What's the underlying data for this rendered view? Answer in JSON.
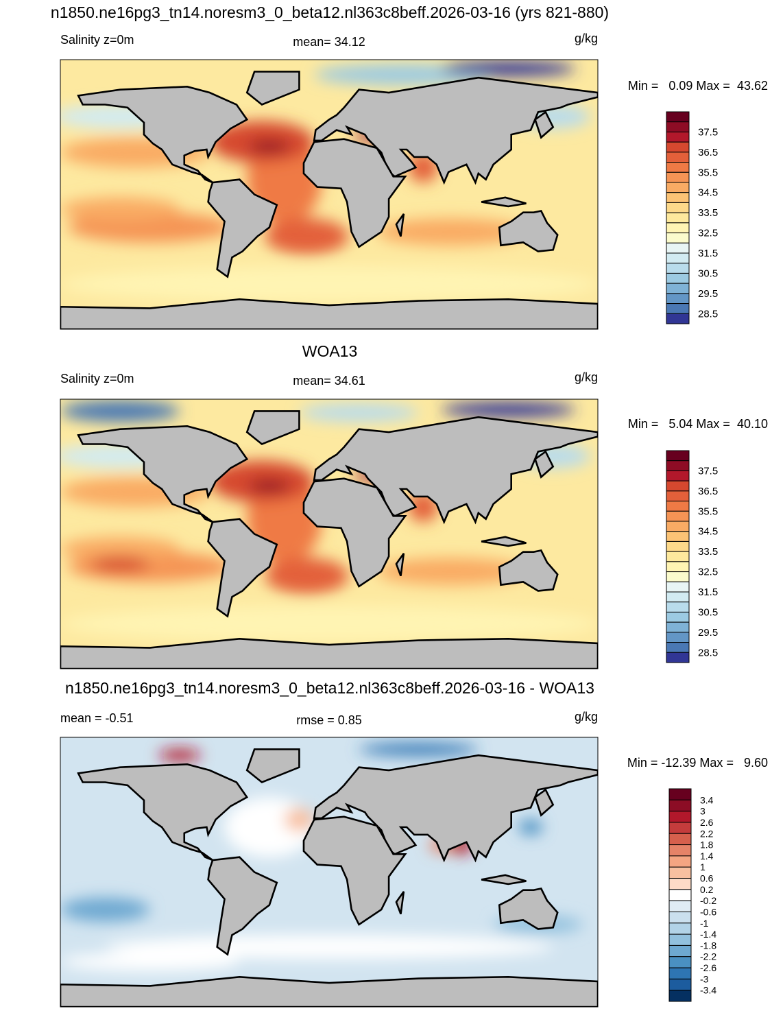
{
  "panels": [
    {
      "title": "n1850.ne16pg3_tn14.noresm3_0_beta12.nl363c8beff.2026-03-16 (yrs 821-880)",
      "left": "Salinity z=0m",
      "center": "mean=  34.12",
      "right": "g/kg",
      "minmax": "Min =   0.09 Max =  43.62",
      "colorbar": {
        "lim": [
          28,
          38.5
        ],
        "labels": [
          37.5,
          36.5,
          35.5,
          34.5,
          33.5,
          32.5,
          31.5,
          30.5,
          29.5,
          28.5
        ],
        "colors": [
          "#67001f",
          "#8e0c25",
          "#b2182b",
          "#d6482f",
          "#e3603a",
          "#ef7a45",
          "#f59455",
          "#f9ab64",
          "#fcc375",
          "#fdd98a",
          "#fee99d",
          "#fff4b3",
          "#fbfbcc",
          "#e8f5f5",
          "#d2ebf2",
          "#b9dcec",
          "#9ccae2",
          "#7fb2d6",
          "#6396c6",
          "#4a78b4",
          "#313695"
        ]
      }
    },
    {
      "title": "WOA13",
      "left": "Salinity z=0m",
      "center": "mean=  34.61",
      "right": "g/kg",
      "minmax": "Min =   5.04 Max =  40.10",
      "colorbar": {
        "lim": [
          28,
          38.5
        ],
        "labels": [
          37.5,
          36.5,
          35.5,
          34.5,
          33.5,
          32.5,
          31.5,
          30.5,
          29.5,
          28.5
        ],
        "colors": [
          "#67001f",
          "#8e0c25",
          "#b2182b",
          "#d6482f",
          "#e3603a",
          "#ef7a45",
          "#f59455",
          "#f9ab64",
          "#fcc375",
          "#fdd98a",
          "#fee99d",
          "#fff4b3",
          "#fbfbcc",
          "#e8f5f5",
          "#d2ebf2",
          "#b9dcec",
          "#9ccae2",
          "#7fb2d6",
          "#6396c6",
          "#4a78b4",
          "#313695"
        ]
      }
    },
    {
      "title": "n1850.ne16pg3_tn14.noresm3_0_beta12.nl363c8beff.2026-03-16 - WOA13",
      "left": "mean =  -0.51",
      "center": "rmse =   0.85",
      "right": "g/kg",
      "minmax": "Min = -12.39 Max =   9.60",
      "colorbar": {
        "lim": [
          -3.8,
          3.8
        ],
        "labels": [
          3.4,
          3,
          2.6,
          2.2,
          1.8,
          1.4,
          1,
          0.6,
          0.2,
          -0.2,
          -0.6,
          -1,
          -1.4,
          -1.8,
          -2.2,
          -2.6,
          -3,
          -3.4
        ],
        "colors": [
          "#67001f",
          "#8c0d25",
          "#b2182b",
          "#c43c3c",
          "#d6604d",
          "#e58368",
          "#f4a582",
          "#f8c0a0",
          "#fddbc7",
          "#ffffff",
          "#e0ecf4",
          "#cbe0ee",
          "#b2d3e7",
          "#92c1de",
          "#6ea9d1",
          "#4a90c2",
          "#2e75b3",
          "#1c5c9e",
          "#053061"
        ]
      }
    }
  ]
}
